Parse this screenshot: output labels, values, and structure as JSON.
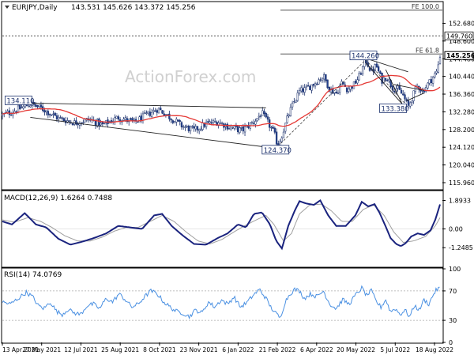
{
  "symbol_header": "EURJPY,Daily",
  "ohlc_header": "143.531 145.626 143.372 145.256",
  "watermark": "ActionForex.com",
  "macd_header": "MACD(12,26,9) 1.6264 0.7488",
  "rsi_header": "RSI(14) 74.0769",
  "colors": {
    "candle_up": "#ffffff",
    "candle_down": "#24428f",
    "candle_border": "#1a2f6b",
    "moving_average": "#e53935",
    "macd_line": "#1a237e",
    "macd_signal": "#a0a0a0",
    "rsi_line": "#4a90e2",
    "trendline": "#222222",
    "fib_line": "#555555",
    "watermark": "#d0d0d0"
  },
  "chart_data": [
    {
      "type": "candlestick",
      "panel": "price",
      "ylim": [
        114.5,
        157.5
      ],
      "y_ticks": [
        "152.680",
        "148.600",
        "144.480",
        "140.440",
        "136.360",
        "132.280",
        "128.200",
        "124.120",
        "120.040",
        "115.960"
      ],
      "x_labels": [
        "13 Apr 2021",
        "27 May 2021",
        "12 Jul 2021",
        "25 Aug 2021",
        "8 Oct 2021",
        "23 Nov 2021",
        "6 Jan 2022",
        "21 Feb 2022",
        "6 Apr 2022",
        "20 May 2022",
        "5 Jul 2022",
        "18 Aug 2022"
      ],
      "last_price": "145.256",
      "fib_levels": [
        {
          "label": "FE 100.0",
          "value": 155.7
        },
        {
          "label": "149.760",
          "value": 149.76
        },
        {
          "label": "FE 61.8",
          "value": 145.6
        }
      ],
      "annotations": [
        "134.110",
        "124.370",
        "144.260",
        "133.380"
      ],
      "trend": [
        {
          "d": 0,
          "v": 131.5
        },
        {
          "d": 15,
          "v": 132.5
        },
        {
          "d": 35,
          "v": 134.11
        },
        {
          "d": 50,
          "v": 133.0
        },
        {
          "d": 70,
          "v": 130.8
        },
        {
          "d": 90,
          "v": 129.8
        },
        {
          "d": 110,
          "v": 130.5
        },
        {
          "d": 125,
          "v": 129.2
        },
        {
          "d": 145,
          "v": 131.0
        },
        {
          "d": 165,
          "v": 129.8
        },
        {
          "d": 180,
          "v": 131.5
        },
        {
          "d": 195,
          "v": 133.0
        },
        {
          "d": 210,
          "v": 131.0
        },
        {
          "d": 225,
          "v": 129.0
        },
        {
          "d": 240,
          "v": 128.0
        },
        {
          "d": 255,
          "v": 129.5
        },
        {
          "d": 270,
          "v": 130.0
        },
        {
          "d": 285,
          "v": 128.7
        },
        {
          "d": 300,
          "v": 128.0
        },
        {
          "d": 315,
          "v": 130.0
        },
        {
          "d": 325,
          "v": 132.0
        },
        {
          "d": 330,
          "v": 130.5
        },
        {
          "d": 340,
          "v": 127.5
        },
        {
          "d": 345,
          "v": 124.37
        },
        {
          "d": 352,
          "v": 128.0
        },
        {
          "d": 358,
          "v": 131.5
        },
        {
          "d": 365,
          "v": 134.5
        },
        {
          "d": 372,
          "v": 137.0
        },
        {
          "d": 380,
          "v": 137.5
        },
        {
          "d": 388,
          "v": 138.5
        },
        {
          "d": 395,
          "v": 139.5
        },
        {
          "d": 402,
          "v": 140.5
        },
        {
          "d": 410,
          "v": 137.5
        },
        {
          "d": 418,
          "v": 136.5
        },
        {
          "d": 425,
          "v": 139.0
        },
        {
          "d": 432,
          "v": 137.5
        },
        {
          "d": 440,
          "v": 138.5
        },
        {
          "d": 447,
          "v": 140.5
        },
        {
          "d": 455,
          "v": 144.26
        },
        {
          "d": 462,
          "v": 141.5
        },
        {
          "d": 468,
          "v": 143.0
        },
        {
          "d": 475,
          "v": 139.5
        },
        {
          "d": 481,
          "v": 140.5
        },
        {
          "d": 488,
          "v": 138.0
        },
        {
          "d": 495,
          "v": 137.5
        },
        {
          "d": 502,
          "v": 136.0
        },
        {
          "d": 508,
          "v": 133.38
        },
        {
          "d": 514,
          "v": 136.0
        },
        {
          "d": 520,
          "v": 138.5
        },
        {
          "d": 526,
          "v": 137.0
        },
        {
          "d": 532,
          "v": 138.5
        },
        {
          "d": 538,
          "v": 140.0
        },
        {
          "d": 544,
          "v": 141.5
        },
        {
          "d": 548,
          "v": 145.256
        }
      ],
      "trend_days": 548
    },
    {
      "type": "line",
      "panel": "macd",
      "ylim": [
        -2.5,
        2.5
      ],
      "y_ticks": [
        "1.8933",
        "0.00",
        "-1.2485"
      ],
      "macd": [
        [
          0,
          0.5
        ],
        [
          12,
          0.3
        ],
        [
          28,
          1.05
        ],
        [
          42,
          0.3
        ],
        [
          55,
          0.1
        ],
        [
          70,
          -0.65
        ],
        [
          85,
          -1.05
        ],
        [
          100,
          -0.85
        ],
        [
          115,
          -0.6
        ],
        [
          130,
          -0.3
        ],
        [
          145,
          0.2
        ],
        [
          160,
          0.1
        ],
        [
          175,
          0.0
        ],
        [
          190,
          0.9
        ],
        [
          200,
          1.0
        ],
        [
          212,
          0.2
        ],
        [
          225,
          -0.4
        ],
        [
          240,
          -1.0
        ],
        [
          255,
          -1.05
        ],
        [
          270,
          -0.6
        ],
        [
          282,
          -0.3
        ],
        [
          295,
          0.3
        ],
        [
          305,
          0.1
        ],
        [
          315,
          1.0
        ],
        [
          325,
          1.1
        ],
        [
          335,
          0.3
        ],
        [
          343,
          -0.8
        ],
        [
          350,
          -1.3
        ],
        [
          358,
          0.2
        ],
        [
          366,
          1.2
        ],
        [
          372,
          1.85
        ],
        [
          380,
          1.7
        ],
        [
          390,
          1.6
        ],
        [
          398,
          1.9
        ],
        [
          408,
          0.9
        ],
        [
          418,
          0.2
        ],
        [
          430,
          0.2
        ],
        [
          442,
          0.9
        ],
        [
          450,
          1.8
        ],
        [
          458,
          1.5
        ],
        [
          466,
          1.65
        ],
        [
          472,
          1.1
        ],
        [
          478,
          0.4
        ],
        [
          486,
          -0.6
        ],
        [
          493,
          -1.0
        ],
        [
          499,
          -1.15
        ],
        [
          505,
          -0.95
        ],
        [
          512,
          -0.5
        ],
        [
          520,
          -0.3
        ],
        [
          528,
          -0.4
        ],
        [
          536,
          -0.1
        ],
        [
          542,
          0.6
        ],
        [
          548,
          1.63
        ]
      ],
      "signal": [
        [
          0,
          0.6
        ],
        [
          15,
          0.45
        ],
        [
          32,
          0.75
        ],
        [
          48,
          0.5
        ],
        [
          62,
          0.1
        ],
        [
          78,
          -0.45
        ],
        [
          94,
          -0.8
        ],
        [
          110,
          -0.8
        ],
        [
          125,
          -0.55
        ],
        [
          140,
          -0.15
        ],
        [
          155,
          0.1
        ],
        [
          170,
          0.1
        ],
        [
          185,
          0.5
        ],
        [
          200,
          0.9
        ],
        [
          215,
          0.5
        ],
        [
          230,
          -0.2
        ],
        [
          245,
          -0.8
        ],
        [
          260,
          -1.0
        ],
        [
          275,
          -0.7
        ],
        [
          290,
          -0.2
        ],
        [
          303,
          0.2
        ],
        [
          318,
          0.6
        ],
        [
          330,
          0.9
        ],
        [
          340,
          0.3
        ],
        [
          352,
          -0.8
        ],
        [
          362,
          -0.3
        ],
        [
          372,
          1.0
        ],
        [
          385,
          1.6
        ],
        [
          400,
          1.65
        ],
        [
          412,
          1.2
        ],
        [
          425,
          0.5
        ],
        [
          438,
          0.5
        ],
        [
          452,
          1.3
        ],
        [
          465,
          1.6
        ],
        [
          478,
          0.9
        ],
        [
          490,
          -0.2
        ],
        [
          502,
          -0.9
        ],
        [
          515,
          -0.8
        ],
        [
          530,
          -0.5
        ],
        [
          542,
          0.2
        ],
        [
          548,
          0.75
        ]
      ]
    },
    {
      "type": "line",
      "panel": "rsi",
      "ylim": [
        0,
        100
      ],
      "y_ticks": [
        "100",
        "70",
        "30",
        "0"
      ],
      "rsi": [
        [
          0,
          55
        ],
        [
          10,
          52
        ],
        [
          20,
          60
        ],
        [
          30,
          68
        ],
        [
          38,
          62
        ],
        [
          45,
          50
        ],
        [
          52,
          46
        ],
        [
          60,
          55
        ],
        [
          68,
          42
        ],
        [
          75,
          38
        ],
        [
          82,
          45
        ],
        [
          90,
          40
        ],
        [
          98,
          38
        ],
        [
          106,
          50
        ],
        [
          114,
          52
        ],
        [
          122,
          46
        ],
        [
          130,
          60
        ],
        [
          138,
          55
        ],
        [
          146,
          66
        ],
        [
          154,
          58
        ],
        [
          162,
          48
        ],
        [
          170,
          52
        ],
        [
          178,
          62
        ],
        [
          186,
          70
        ],
        [
          194,
          66
        ],
        [
          202,
          55
        ],
        [
          210,
          48
        ],
        [
          218,
          42
        ],
        [
          226,
          40
        ],
        [
          234,
          35
        ],
        [
          242,
          44
        ],
        [
          250,
          40
        ],
        [
          258,
          55
        ],
        [
          266,
          48
        ],
        [
          274,
          58
        ],
        [
          282,
          52
        ],
        [
          290,
          62
        ],
        [
          298,
          48
        ],
        [
          306,
          54
        ],
        [
          314,
          64
        ],
        [
          322,
          72
        ],
        [
          330,
          60
        ],
        [
          336,
          48
        ],
        [
          342,
          40
        ],
        [
          348,
          33
        ],
        [
          354,
          55
        ],
        [
          360,
          66
        ],
        [
          366,
          72
        ],
        [
          372,
          70
        ],
        [
          378,
          60
        ],
        [
          386,
          66
        ],
        [
          394,
          62
        ],
        [
          402,
          70
        ],
        [
          410,
          52
        ],
        [
          418,
          46
        ],
        [
          426,
          58
        ],
        [
          434,
          52
        ],
        [
          442,
          64
        ],
        [
          450,
          74
        ],
        [
          456,
          64
        ],
        [
          462,
          70
        ],
        [
          468,
          56
        ],
        [
          474,
          48
        ],
        [
          480,
          58
        ],
        [
          486,
          42
        ],
        [
          492,
          46
        ],
        [
          498,
          38
        ],
        [
          504,
          44
        ],
        [
          510,
          35
        ],
        [
          516,
          50
        ],
        [
          522,
          44
        ],
        [
          528,
          58
        ],
        [
          534,
          52
        ],
        [
          540,
          66
        ],
        [
          544,
          72
        ],
        [
          548,
          74.08
        ]
      ]
    }
  ]
}
